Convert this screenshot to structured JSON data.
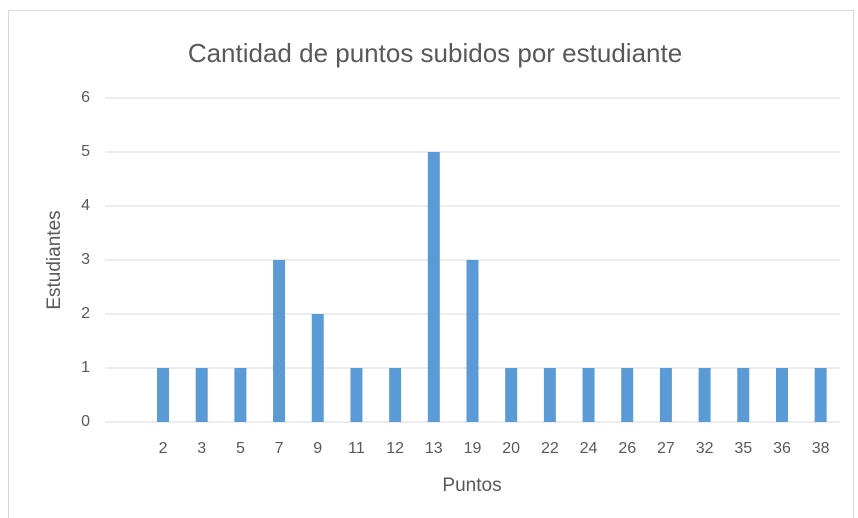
{
  "chart_data": {
    "type": "bar",
    "title": "Cantidad de puntos subidos por estudiante",
    "x_label": "Puntos",
    "y_label": "Estudiantes",
    "categories": [
      null,
      "2",
      "3",
      "5",
      "7",
      "9",
      "11",
      "12",
      "13",
      "19",
      "20",
      "22",
      "24",
      "26",
      "27",
      "32",
      "35",
      "36",
      "38"
    ],
    "values": [
      null,
      1,
      1,
      1,
      3,
      2,
      1,
      1,
      5,
      3,
      1,
      1,
      1,
      1,
      1,
      1,
      1,
      1,
      1
    ],
    "color": "#5b9bd5",
    "ylim": [
      0,
      6
    ],
    "yticks": [
      0,
      1,
      2,
      3,
      4,
      5,
      6
    ],
    "grid": true
  }
}
